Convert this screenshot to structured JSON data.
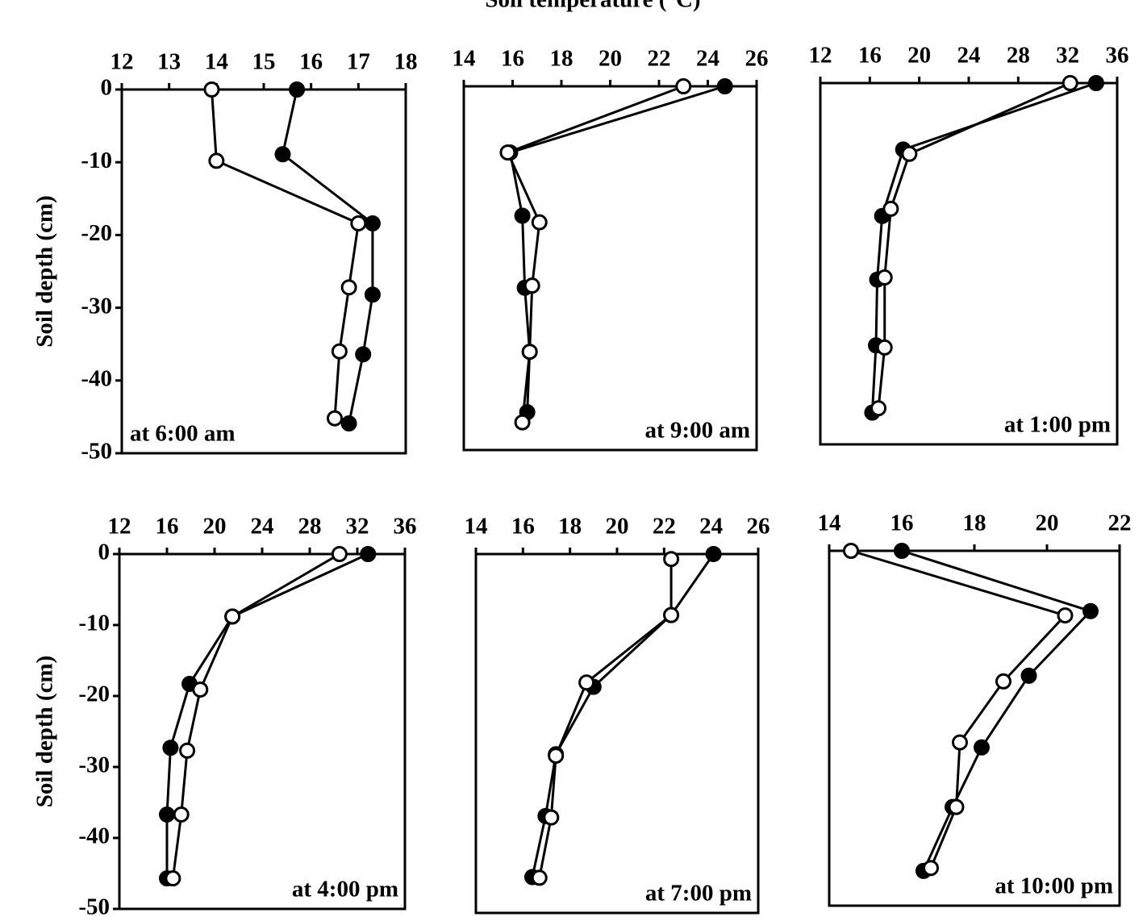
{
  "title": "Soil temperature (°C)",
  "chart_data": [
    {
      "type": "line",
      "annotation": "at 6:00 am",
      "annotation_position": "bottom-left",
      "ylabel": "Soil depth (cm)",
      "xlim": [
        12,
        18
      ],
      "xticks": [
        12,
        13,
        14,
        15,
        16,
        17,
        18
      ],
      "ylim": [
        -50,
        0
      ],
      "yticks": [
        0,
        -10,
        -20,
        -30,
        -40,
        -50
      ],
      "series": [
        {
          "color": "#000000",
          "fill": "#000000",
          "x": [
            15.7,
            15.4,
            17.3,
            17.3,
            17.1,
            16.8
          ],
          "values": [
            0,
            -8.9,
            -18.4,
            -28.2,
            -36.4,
            -45.9
          ]
        },
        {
          "color": "#000000",
          "fill": "#ffffff",
          "x": [
            13.9,
            14.0,
            17.0,
            16.8,
            16.6,
            16.5
          ],
          "values": [
            0,
            -9.8,
            -18.4,
            -27.2,
            -36,
            -45.2
          ]
        }
      ]
    },
    {
      "type": "line",
      "annotation": "at 9:00 am",
      "annotation_position": "bottom-right",
      "xlim": [
        14,
        26
      ],
      "xticks": [
        14,
        16,
        18,
        20,
        22,
        24,
        26
      ],
      "ylim": [
        -50,
        0
      ],
      "series": [
        {
          "color": "#000000",
          "fill": "#000000",
          "x": [
            24.7,
            15.9,
            16.4,
            16.5,
            16.7,
            16.6
          ],
          "values": [
            0,
            -9.1,
            -17.8,
            -27.7,
            -36.5,
            -44.8
          ]
        },
        {
          "color": "#000000",
          "fill": "#ffffff",
          "x": [
            23.0,
            15.8,
            17.1,
            16.8,
            16.7,
            16.4
          ],
          "values": [
            0,
            -9.1,
            -18.7,
            -27.4,
            -36.5,
            -46.2
          ]
        }
      ]
    },
    {
      "type": "line",
      "annotation": "at 1:00 pm",
      "annotation_position": "bottom-right",
      "xlim": [
        12,
        36
      ],
      "xticks": [
        12,
        16,
        20,
        24,
        28,
        32,
        36
      ],
      "ylim": [
        -50,
        0
      ],
      "series": [
        {
          "color": "#000000",
          "fill": "#000000",
          "x": [
            34.3,
            18.7,
            17.0,
            16.6,
            16.5,
            16.2
          ],
          "values": [
            0,
            -9.2,
            -18.4,
            -27.2,
            -36.3,
            -45.6
          ]
        },
        {
          "color": "#000000",
          "fill": "#ffffff",
          "x": [
            32.2,
            19.2,
            17.7,
            17.2,
            17.2,
            16.7
          ],
          "values": [
            0,
            -9.8,
            -17.4,
            -26.9,
            -36.6,
            -45
          ]
        }
      ]
    },
    {
      "type": "line",
      "annotation": "at 4:00 pm",
      "annotation_position": "bottom-right",
      "ylabel": "Soil depth (cm)",
      "xlim": [
        12,
        36
      ],
      "xticks": [
        12,
        16,
        20,
        24,
        28,
        32,
        36
      ],
      "ylim": [
        -50,
        0
      ],
      "yticks": [
        0,
        -10,
        -20,
        -30,
        -40,
        -50
      ],
      "series": [
        {
          "color": "#000000",
          "fill": "#000000",
          "x": [
            32.9,
            21.5,
            17.9,
            16.3,
            16.0,
            16.0
          ],
          "values": [
            0,
            -8.8,
            -18.3,
            -27.3,
            -36.7,
            -45.7
          ]
        },
        {
          "color": "#000000",
          "fill": "#ffffff",
          "x": [
            30.5,
            21.5,
            18.8,
            17.7,
            17.2,
            16.5
          ],
          "values": [
            0,
            -8.8,
            -19.1,
            -27.7,
            -36.7,
            -45.7
          ]
        }
      ]
    },
    {
      "type": "line",
      "annotation": "at 7:00 pm",
      "annotation_position": "bottom-right",
      "xlim": [
        14,
        26
      ],
      "xticks": [
        14,
        16,
        18,
        20,
        22,
        24,
        26
      ],
      "ylim": [
        -50,
        0
      ],
      "series": [
        {
          "color": "#000000",
          "fill": "#000000",
          "x": [
            24.1,
            22.3,
            19.0,
            17.4,
            16.96,
            16.4
          ],
          "values": [
            0,
            -8.5,
            -18.5,
            -27.9,
            -36.5,
            -45
          ]
        },
        {
          "color": "#000000",
          "fill": "#ffffff",
          "x": [
            22.3,
            22.3,
            18.7,
            17.4,
            17.2,
            16.7
          ],
          "values": [
            -0.7,
            -8.5,
            -17.9,
            -28.1,
            -36.7,
            -45.1
          ]
        }
      ]
    },
    {
      "type": "line",
      "annotation": "at 10:00 pm",
      "annotation_position": "bottom-right",
      "xlim": [
        14,
        22
      ],
      "xticks": [
        14,
        16,
        18,
        20,
        22
      ],
      "ylim": [
        -50,
        0
      ],
      "series": [
        {
          "color": "#000000",
          "fill": "#000000",
          "x": [
            16.0,
            21.2,
            19.5,
            18.2,
            17.4,
            16.6
          ],
          "values": [
            0,
            -8.5,
            -17.6,
            -27.7,
            -36.1,
            -45.1
          ]
        },
        {
          "color": "#000000",
          "fill": "#ffffff",
          "x": [
            14.6,
            20.5,
            18.8,
            17.6,
            17.5,
            16.8
          ],
          "values": [
            0,
            -9.1,
            -18.4,
            -27,
            -36.1,
            -44.7
          ]
        }
      ]
    }
  ]
}
